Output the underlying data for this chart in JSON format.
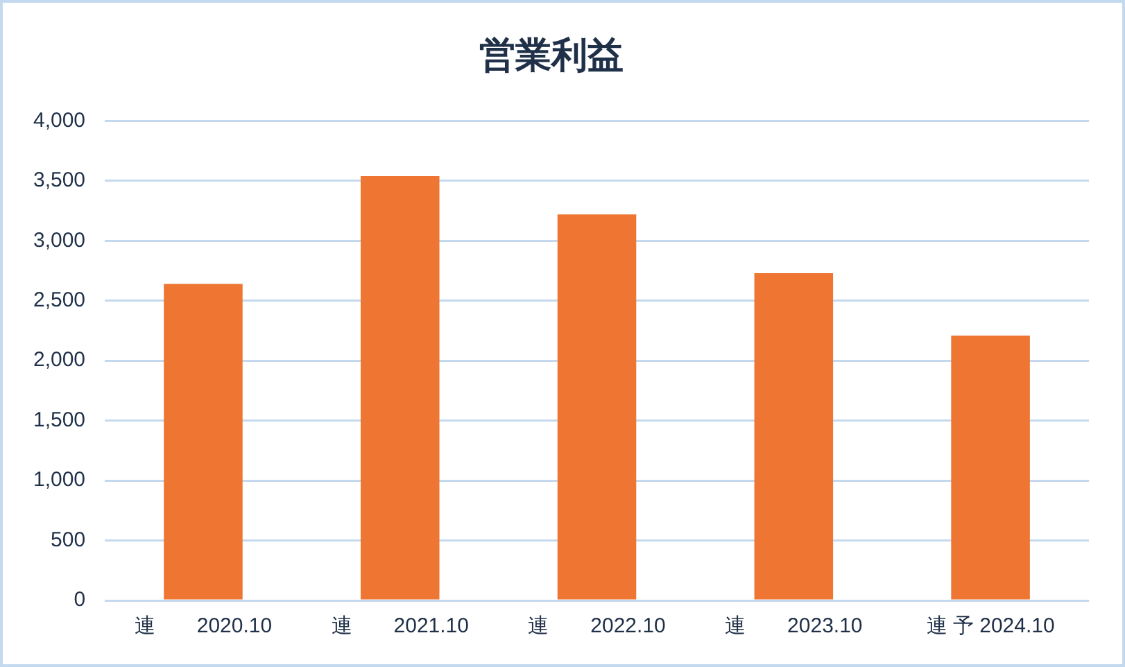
{
  "chart_data": {
    "type": "bar",
    "title": "営業利益",
    "categories": [
      "連　　2020.10",
      "連　　2021.10",
      "連　　2022.10",
      "連　　2023.10",
      "連 予 2024.10"
    ],
    "values": [
      2640,
      3540,
      3220,
      2730,
      2210
    ],
    "color": "#ef7533",
    "ylim": [
      0,
      4000
    ],
    "yticks": [
      0,
      500,
      {
        "value": 1000,
        "label": "1,000"
      },
      {
        "value": 1500,
        "label": "1,500"
      },
      {
        "value": 2000,
        "label": "2,000"
      },
      {
        "value": 2500,
        "label": "2,500"
      },
      {
        "value": 3000,
        "label": "3,000"
      },
      {
        "value": 3500,
        "label": "3,500"
      },
      {
        "value": 4000,
        "label": "4,000"
      }
    ],
    "grid": "y",
    "legend": false
  }
}
